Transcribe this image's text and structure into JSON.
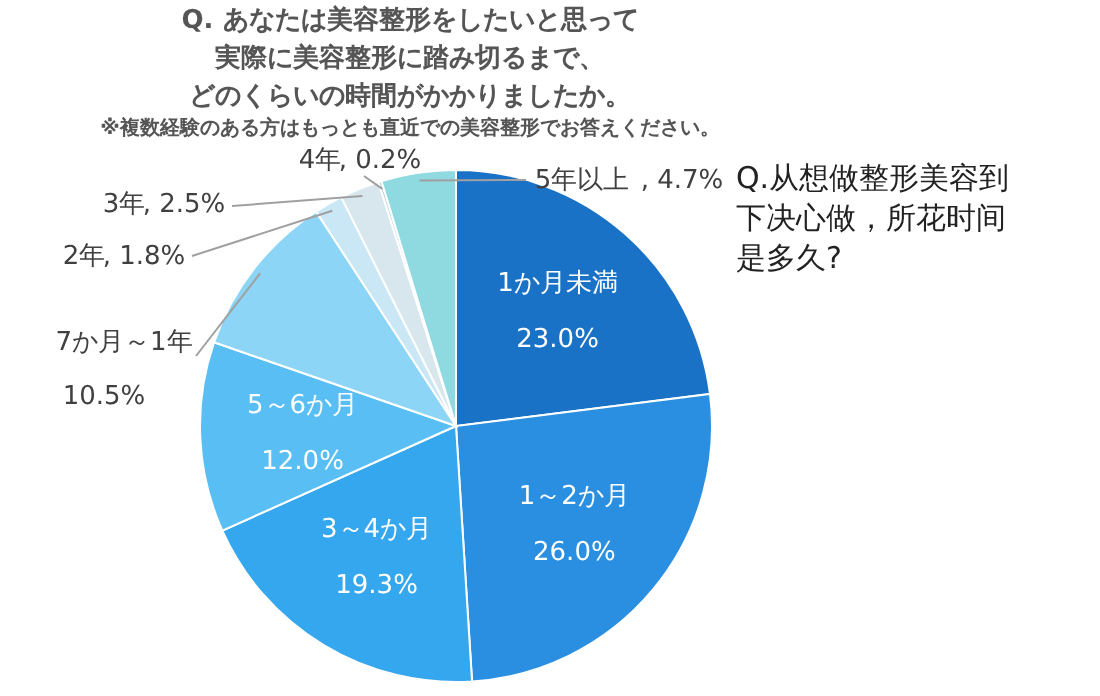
{
  "chart_data": {
    "type": "pie",
    "title": "Q. あなたは美容整形をしたいと思って実際に美容整形に踏み切るまで、どのくらいの時間がかかりましたか。",
    "subtitle": "※複数経験のある方はもっとも直近での美容整形でお答えください。",
    "categories": [
      "1か月未満",
      "1～2か月",
      "3～4か月",
      "5～6か月",
      "7か月～1年",
      "2年",
      "3年",
      "4年",
      "5年以上"
    ],
    "values": [
      23.0,
      26.0,
      19.3,
      12.0,
      10.5,
      1.8,
      2.5,
      0.2,
      4.7
    ],
    "value_labels": [
      "23.0%",
      "26.0%",
      "19.3%",
      "12.0%",
      "10.5%",
      ", 1.8%",
      ", 2.5%",
      ", 0.2%",
      ", 4.7%"
    ],
    "colors": [
      "#1a72c6",
      "#2a8fe0",
      "#35a7ee",
      "#58bef3",
      "#8cd5f6",
      "#c9e7f4",
      "#d8e7ee",
      "#b4d3e0",
      "#8fd9e1"
    ],
    "annotations": [
      "Q.从想做整形美容到下决心做，所花时间是多久?"
    ]
  }
}
